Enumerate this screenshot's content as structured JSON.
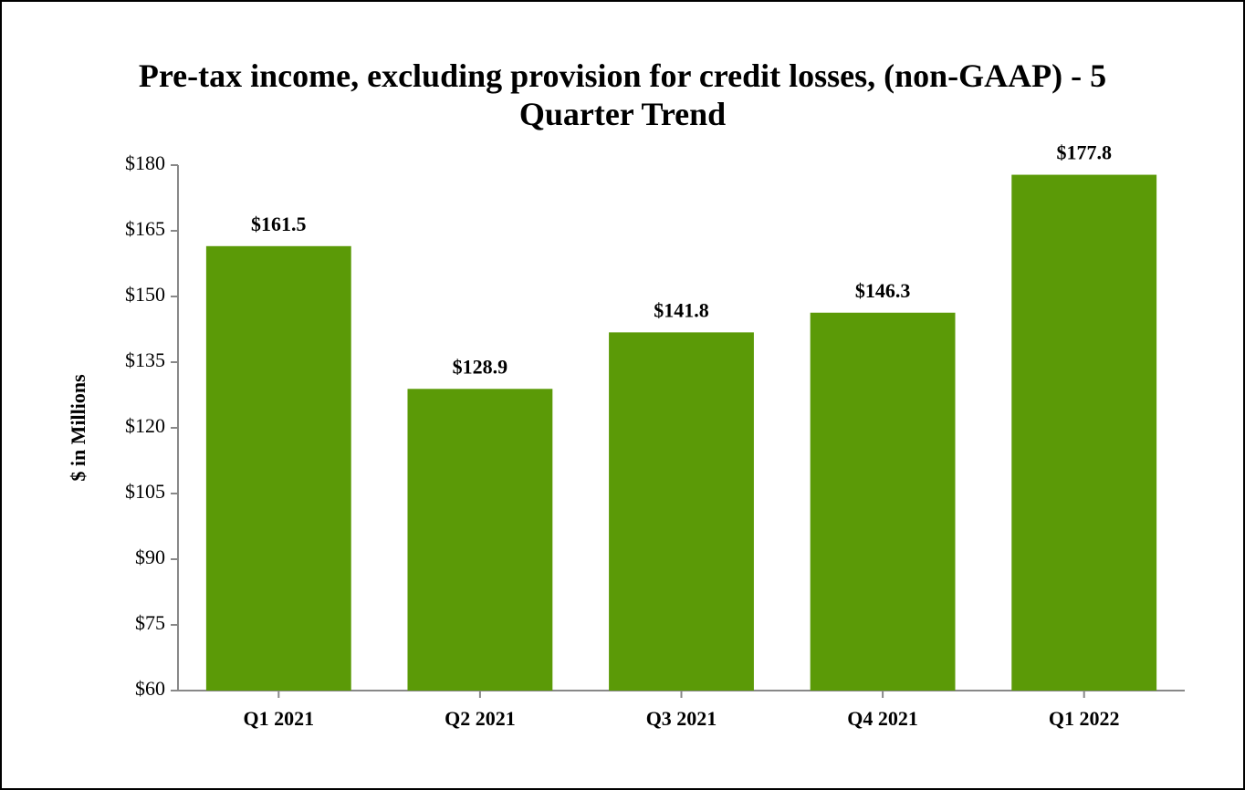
{
  "chart_data": {
    "type": "bar",
    "title": "Pre-tax income, excluding provision for credit losses, (non-GAAP) - 5 Quarter Trend",
    "y_label": "$ in Millions",
    "categories": [
      "Q1 2021",
      "Q2 2021",
      "Q3 2021",
      "Q4 2021",
      "Q1 2022"
    ],
    "values": [
      161.5,
      128.9,
      141.8,
      146.3,
      177.8
    ],
    "value_labels": [
      "$161.5",
      "$128.9",
      "$141.8",
      "$146.3",
      "$177.8"
    ],
    "color": "#5b9a07",
    "ylim": [
      60,
      180
    ],
    "yticks": [
      {
        "value": 60,
        "label": "$60"
      },
      {
        "value": 75,
        "label": "$75"
      },
      {
        "value": 90,
        "label": "$90"
      },
      {
        "value": 105,
        "label": "$105"
      },
      {
        "value": 120,
        "label": "$120"
      },
      {
        "value": 135,
        "label": "$135"
      },
      {
        "value": 150,
        "label": "$150"
      },
      {
        "value": 165,
        "label": "$165"
      },
      {
        "value": 180,
        "label": "$180"
      }
    ],
    "grid": false
  }
}
